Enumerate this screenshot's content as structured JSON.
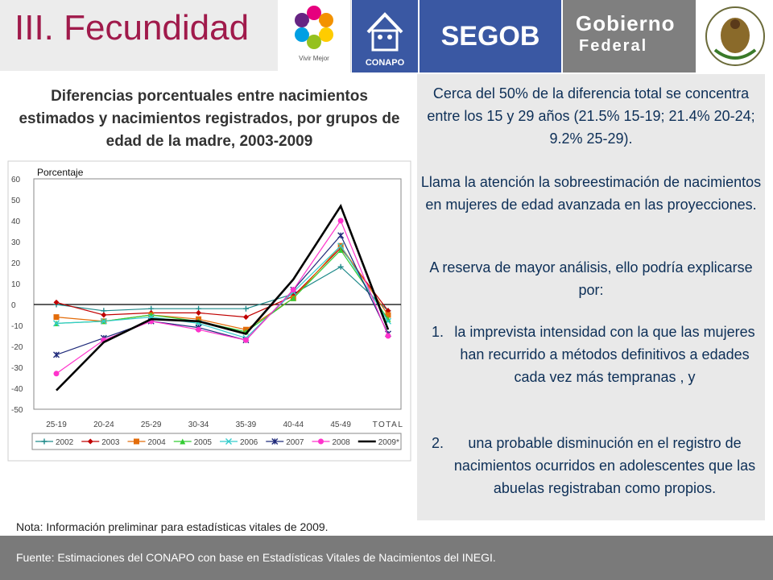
{
  "header": {
    "title": "III. Fecundidad",
    "logos": {
      "vivir": "Vivir Mejor",
      "conapo": "CONAPO",
      "segob": "SEGOB",
      "gobierno_line1": "Gobierno",
      "gobierno_line2": "Federal"
    }
  },
  "chart_title": "Diferencias porcentuales entre nacimientos estimados y nacimientos registrados, por grupos de edad de la madre, 2003-2009",
  "chart_data": {
    "type": "line",
    "title": "Diferencias porcentuales entre nacimientos estimados y nacimientos registrados, por grupos de edad de la madre, 2003-2009",
    "ylabel": "Porcentaje",
    "xlabel": "",
    "categories": [
      "25-19",
      "20-24",
      "25-29",
      "30-34",
      "35-39",
      "40-44",
      "45-49",
      "TOTAL"
    ],
    "ylim": [
      -50,
      60
    ],
    "yticks": [
      60,
      50,
      40,
      30,
      20,
      10,
      0,
      -10,
      -20,
      -30,
      -40,
      -50
    ],
    "series": [
      {
        "name": "2002",
        "color": "#1f8a8a",
        "marker": "plus",
        "values": [
          0,
          -3,
          -2,
          -2,
          -2,
          5,
          18,
          -3
        ]
      },
      {
        "name": "2003",
        "color": "#c00000",
        "marker": "diamond",
        "values": [
          1,
          -5,
          -4,
          -4,
          -6,
          4,
          27,
          -3
        ]
      },
      {
        "name": "2004",
        "color": "#e36c0a",
        "marker": "square",
        "values": [
          -6,
          -8,
          -5,
          -7,
          -12,
          3,
          28,
          -5
        ]
      },
      {
        "name": "2005",
        "color": "#33cc33",
        "marker": "triangle",
        "values": [
          -9,
          -8,
          -5,
          -8,
          -13,
          3,
          26,
          -7
        ]
      },
      {
        "name": "2006",
        "color": "#33cccc",
        "marker": "x",
        "values": [
          -9,
          -8,
          -6,
          -9,
          -16,
          6,
          28,
          -8
        ]
      },
      {
        "name": "2007",
        "color": "#1f2a7a",
        "marker": "star",
        "values": [
          -24,
          -16,
          -8,
          -11,
          -17,
          7,
          33,
          -14
        ]
      },
      {
        "name": "2008",
        "color": "#ff33cc",
        "marker": "circle",
        "values": [
          -33,
          -17,
          -8,
          -12,
          -17,
          7,
          40,
          -15
        ]
      },
      {
        "name": "2009*",
        "color": "#000000",
        "marker": "none",
        "values": [
          -41,
          -18,
          -7,
          -8,
          -14,
          12,
          47,
          -12
        ]
      }
    ]
  },
  "nota": "Nota: Información preliminar para estadísticas vitales de 2009.",
  "right": {
    "p1": "Cerca del 50% de la diferencia total se concentra entre los 15 y 29 años (21.5% 15-19; 21.4% 20-24; 9.2% 25-29).",
    "p2": "Llama la atención la sobreestimación de nacimientos en mujeres de edad avanzada en las proyecciones.",
    "p3": "A reserva de mayor análisis, ello podría explicarse por:",
    "items": [
      {
        "num": "1.",
        "text": "la imprevista intensidad con la que las mujeres han recurrido a métodos definitivos a edades cada vez más tempranas , y"
      },
      {
        "num": "2.",
        "text": "una probable disminución en el registro de nacimientos ocurridos en adolescentes que las abuelas registraban como propios."
      }
    ]
  },
  "footer": {
    "source": "Fuente: Estimaciones del CONAPO con base en Estadísticas Vitales de Nacimientos del INEGI."
  }
}
